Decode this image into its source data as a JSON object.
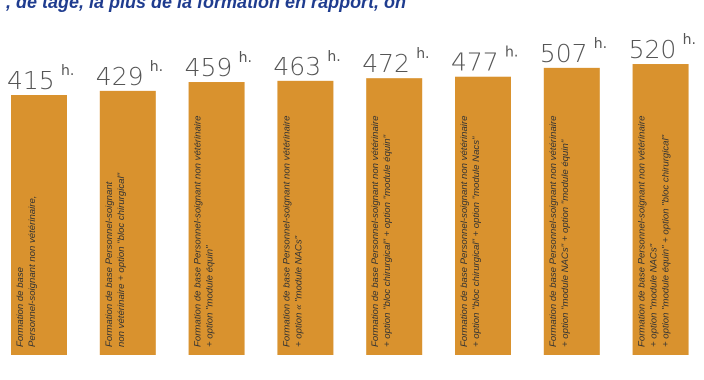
{
  "header": {
    "text": ", de tage, la plus de la formation en rapport, on"
  },
  "chart_data": {
    "type": "bar",
    "unit": "h.",
    "ylim": [
      0,
      520
    ],
    "series": [
      {
        "values": [
          415,
          429,
          459,
          463,
          472,
          477,
          507,
          520
        ]
      }
    ],
    "categories": [
      [
        "Formation de base",
        "Personnel-soignant non vétérinaire,"
      ],
      [
        "Formation de base Personnel-soignant",
        "non vétérinaire + option \"bloc chirurgical\""
      ],
      [
        "Formation de base Personnel-soignant non vétérinaire",
        "+ option \"module équin\""
      ],
      [
        "Formation de base Personnel-soignant non vétérinaire",
        "+ option « \"module NACs\""
      ],
      [
        "Formation de base Personnel-soignant non vétérinaire",
        "+ option \"bloc chirurgical\" + option \"module équin\""
      ],
      [
        "Formation de base Personnel-soignant non vétérinaire",
        "+ option \"bloc chirurgical\" + option \"module Nacs\""
      ],
      [
        "Formation de base Personnel-soignant non vétérinaire",
        "+ option \"module NACs\" + option \"module équin\""
      ],
      [
        "Formation de base Personnel-soignant non vétérinaire",
        "+ option \"module NACs\"",
        "+ option \"module équin\" + option \"bloc chirurgical\""
      ]
    ],
    "colors": {
      "bar": "#d9922e",
      "text": "#555555",
      "header": "#1f3c8f"
    },
    "grid": false,
    "legend": "none"
  }
}
